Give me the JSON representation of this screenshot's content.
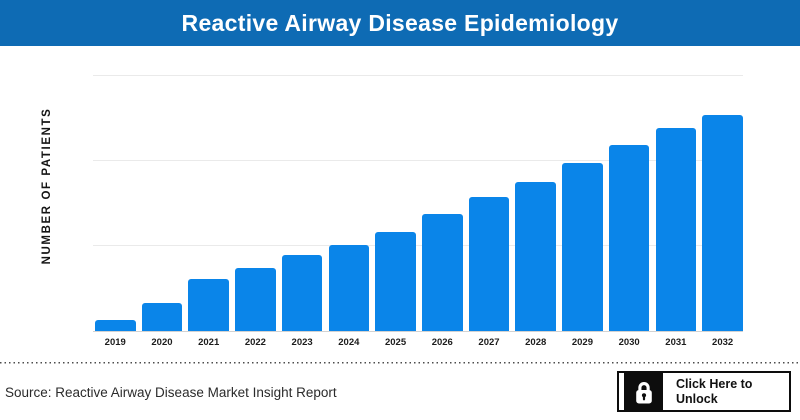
{
  "header": {
    "title": "Reactive Airway Disease Epidemiology",
    "bg_color": "#0e6bb4",
    "text_color": "#ffffff"
  },
  "chart_data": {
    "type": "bar",
    "title": "Reactive Airway Disease Epidemiology",
    "categories": [
      "2019",
      "2020",
      "2021",
      "2022",
      "2023",
      "2024",
      "2025",
      "2026",
      "2027",
      "2028",
      "2029",
      "2030",
      "2031",
      "2032"
    ],
    "values": [
      5,
      13,
      24,
      29,
      35,
      40,
      46,
      54,
      62,
      69,
      78,
      86,
      94,
      100
    ],
    "xlabel": "",
    "ylabel": "NUMBER OF PATIENTS",
    "ylim": [
      0,
      124
    ],
    "y_tick_labels_visible": false,
    "grid": "horizontal-light",
    "legend": "none",
    "bar_color": "#0a85e9"
  },
  "footer": {
    "source_text": "Source: Reactive Airway Disease Market Insight Report",
    "unlock_button": {
      "label_line1": "Click Here to",
      "label_line2": "Unlock",
      "icon": "lock-icon",
      "bg_color": "#ffffff",
      "icon_box_color": "#0d0d0d"
    }
  }
}
